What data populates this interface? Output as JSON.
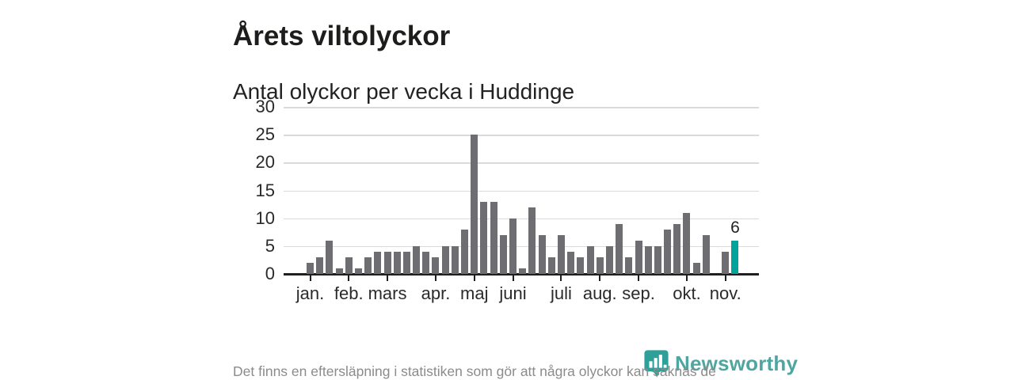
{
  "header": {
    "title": "Årets viltolyckor",
    "subtitle": "Antal olyckor per vecka i Huddinge"
  },
  "footer": {
    "note": "Det finns en eftersläpning i statistiken som gör att några olyckor kan saknas de senaste veckorna."
  },
  "brand": {
    "name": "Newsworthy",
    "icon": "newsworthy-marker-barchart-icon",
    "icon_color": "#2f9f99",
    "text_color": "#4fa6a0"
  },
  "colors": {
    "bar": "#6e6e72",
    "highlight": "#00a39b",
    "axis": "#1f1f1f",
    "gridline": "#dadada",
    "label": "#2a2a2a",
    "footnote": "#8b8b8b"
  },
  "chart_data": {
    "type": "bar",
    "title": "Årets viltolyckor",
    "subtitle": "Antal olyckor per vecka i Huddinge",
    "x_description": "veckor (week 1 to 45)",
    "values": [
      2,
      3,
      6,
      1,
      3,
      1,
      3,
      4,
      4,
      4,
      4,
      5,
      4,
      3,
      5,
      5,
      8,
      25,
      13,
      13,
      7,
      10,
      1,
      12,
      7,
      3,
      7,
      4,
      3,
      5,
      3,
      5,
      9,
      3,
      6,
      5,
      5,
      8,
      9,
      11,
      2,
      7,
      0,
      4,
      6
    ],
    "highlight": {
      "index": 44,
      "value": 6,
      "label": "6"
    },
    "yticks": [
      0,
      5,
      10,
      15,
      20,
      25,
      30
    ],
    "ylim": [
      0,
      30
    ],
    "month_ticks": [
      {
        "label": "jan.",
        "week": 1
      },
      {
        "label": "feb.",
        "week": 5
      },
      {
        "label": "mars",
        "week": 9
      },
      {
        "label": "apr.",
        "week": 14
      },
      {
        "label": "maj",
        "week": 18
      },
      {
        "label": "juni",
        "week": 22
      },
      {
        "label": "juli",
        "week": 27
      },
      {
        "label": "aug.",
        "week": 31
      },
      {
        "label": "sep.",
        "week": 35
      },
      {
        "label": "okt.",
        "week": 40
      },
      {
        "label": "nov.",
        "week": 44
      }
    ],
    "grid": true,
    "legend": false
  }
}
